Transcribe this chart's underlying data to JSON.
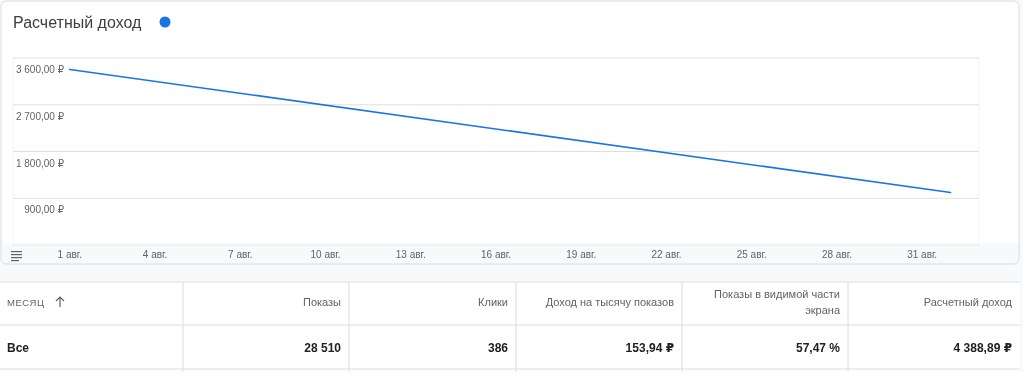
{
  "chart_data": [
    {
      "type": "line",
      "title": "Расчетный доход",
      "x": [
        "--08-01",
        "--09-01"
      ],
      "series": [
        {
          "color": "#1a73e8",
          "values": [
            3380,
            1010
          ]
        }
      ],
      "xlim": [
        "--07-30",
        "--09-02"
      ],
      "xticks": [
        {
          "value": "--08-01",
          "label": "1 авг."
        },
        {
          "value": "--08-04",
          "label": "4 авг."
        },
        {
          "value": "--08-07",
          "label": "7 авг."
        },
        {
          "value": "--08-10",
          "label": "10 авг."
        },
        {
          "value": "--08-13",
          "label": "13 авг."
        },
        {
          "value": "--08-16",
          "label": "16 авг."
        },
        {
          "value": "--08-19",
          "label": "19 авг."
        },
        {
          "value": "--08-22",
          "label": "22 авг."
        },
        {
          "value": "--08-25",
          "label": "25 авг."
        },
        {
          "value": "--08-28",
          "label": "28 авг."
        },
        {
          "value": "--08-31",
          "label": "31 авг."
        }
      ],
      "ylim": [
        0,
        3600
      ],
      "yticks": [
        {
          "value": 900,
          "label": "900,00 ₽"
        },
        {
          "value": 1800,
          "label": "1 800,00 ₽"
        },
        {
          "value": 2700,
          "label": "2 700,00 ₽"
        },
        {
          "value": 3600,
          "label": "3 600,00 ₽"
        }
      ],
      "grid": "y",
      "marker": "none",
      "line_style": "solid"
    },
    {
      "type": "other",
      "categories": [
        "МЕСЯЦ",
        "Показы",
        "Клики",
        "Доход на тысячу показов",
        "Показы в видимой части экрана",
        "Расчетный доход"
      ],
      "value_labels": [
        "Все",
        "28 510",
        "386",
        "153,94 ₽",
        "57,47 %",
        "4 388,89 ₽"
      ]
    }
  ]
}
